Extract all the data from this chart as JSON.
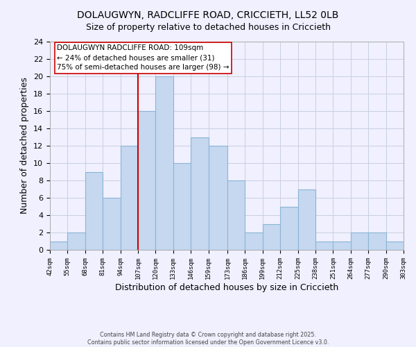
{
  "title_line1": "DOLAUGWYN, RADCLIFFE ROAD, CRICCIETH, LL52 0LB",
  "title_line2": "Size of property relative to detached houses in Criccieth",
  "xlabel": "Distribution of detached houses by size in Criccieth",
  "ylabel": "Number of detached properties",
  "bin_edges": [
    42,
    55,
    68,
    81,
    94,
    107,
    120,
    133,
    146,
    159,
    173,
    186,
    199,
    212,
    225,
    238,
    251,
    264,
    277,
    290,
    303
  ],
  "bin_counts": [
    1,
    2,
    9,
    6,
    12,
    16,
    20,
    10,
    13,
    12,
    8,
    2,
    3,
    5,
    7,
    1,
    1,
    2,
    2,
    1
  ],
  "bar_color": "#c5d8f0",
  "bar_edge_color": "#8ab4d4",
  "vline_x": 107,
  "vline_color": "#cc0000",
  "annotation_title": "DOLAUGWYN RADCLIFFE ROAD: 109sqm",
  "annotation_line2": "← 24% of detached houses are smaller (31)",
  "annotation_line3": "75% of semi-detached houses are larger (98) →",
  "ylim": [
    0,
    24
  ],
  "yticks": [
    0,
    2,
    4,
    6,
    8,
    10,
    12,
    14,
    16,
    18,
    20,
    22,
    24
  ],
  "tick_labels": [
    "42sqm",
    "55sqm",
    "68sqm",
    "81sqm",
    "94sqm",
    "107sqm",
    "120sqm",
    "133sqm",
    "146sqm",
    "159sqm",
    "173sqm",
    "186sqm",
    "199sqm",
    "212sqm",
    "225sqm",
    "238sqm",
    "251sqm",
    "264sqm",
    "277sqm",
    "290sqm",
    "303sqm"
  ],
  "footer_line1": "Contains HM Land Registry data © Crown copyright and database right 2025.",
  "footer_line2": "Contains public sector information licensed under the Open Government Licence v3.0.",
  "background_color": "#f0f0ff",
  "grid_color": "#c8d0e0"
}
